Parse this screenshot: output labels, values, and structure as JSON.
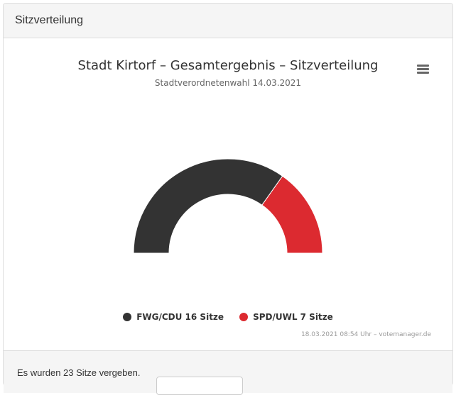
{
  "panel": {
    "title": "Sitzverteilung",
    "footer_text": "Es wurden 23 Sitze vergeben."
  },
  "chart_data": {
    "type": "pie",
    "variant": "semi-circle-donut",
    "title": "Stadt Kirtorf – Gesamtergebnis – Sitzverteilung",
    "subtitle": "Stadtverordnetenwahl 14.03.2021",
    "categories": [
      "FWG/CDU",
      "SPD/UWL"
    ],
    "values": [
      16,
      7
    ],
    "legend_labels": [
      "FWG/CDU 16 Sitze",
      "SPD/UWL 7 Sitze"
    ],
    "colors": [
      "#333333",
      "#dc2a30"
    ],
    "legend_placement": "bottom-center",
    "credits": "18.03.2021 08:54 Uhr – votemanager.de"
  },
  "icons": {
    "menu": "hamburger-menu-icon"
  }
}
